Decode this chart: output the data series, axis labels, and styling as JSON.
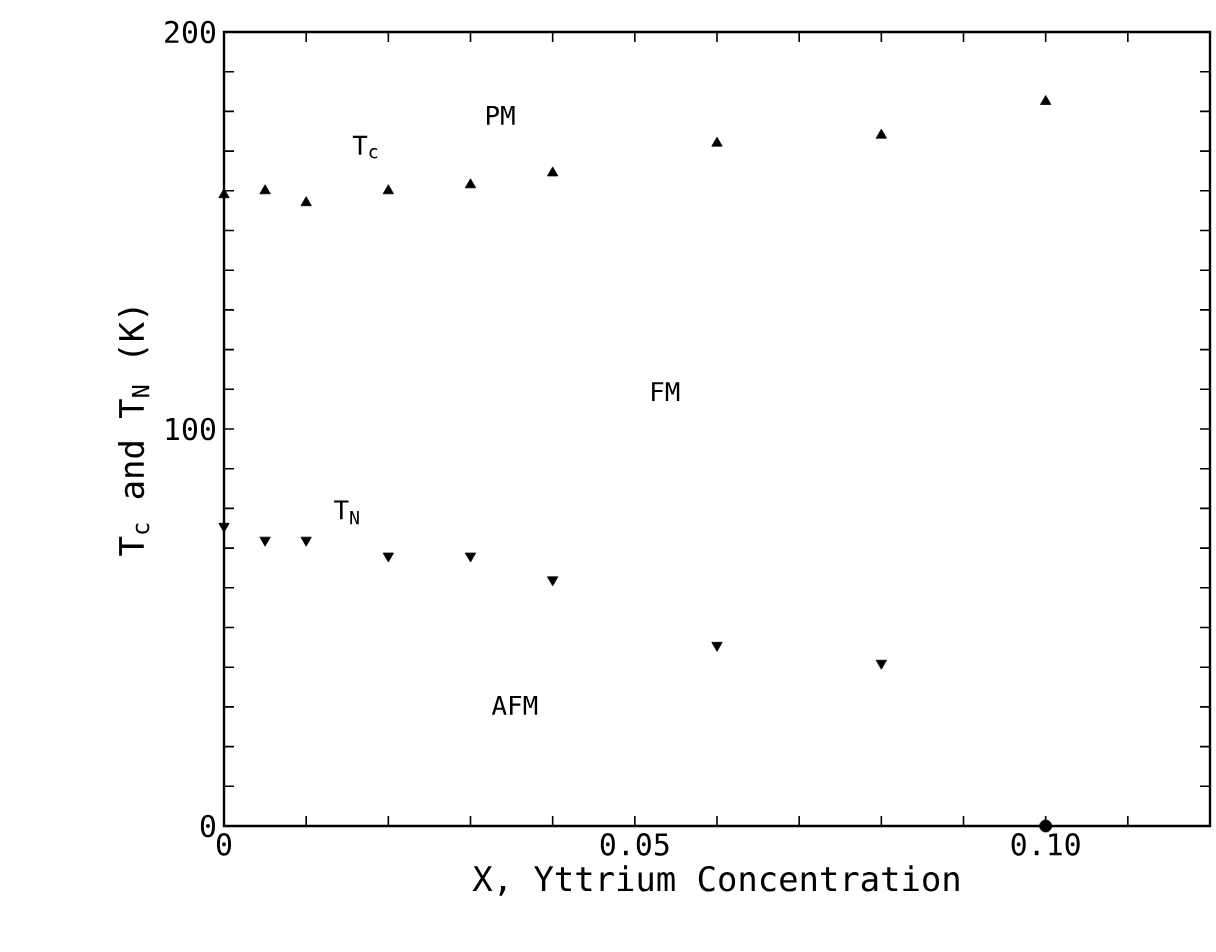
{
  "chart_data": {
    "type": "scatter",
    "xlabel": "X,  Yttrium Concentration",
    "ylabel": "T$_{c}$ and T$_{N}$ (K)",
    "xlim": [
      0,
      0.12
    ],
    "ylim": [
      0,
      200
    ],
    "xticks": [
      0,
      {
        "value": 0.01,
        "label": null
      },
      {
        "value": 0.02,
        "label": null
      },
      {
        "value": 0.03,
        "label": null
      },
      {
        "value": 0.04,
        "label": null
      },
      0.05,
      {
        "value": 0.06,
        "label": null
      },
      {
        "value": 0.07,
        "label": null
      },
      {
        "value": 0.08,
        "label": null
      },
      {
        "value": 0.09,
        "label": null
      },
      {
        "value": 0.1,
        "label": "0.10"
      },
      {
        "value": 0.11,
        "label": null
      }
    ],
    "yticks": [
      0,
      {
        "value": 10,
        "label": null
      },
      {
        "value": 20,
        "label": null
      },
      {
        "value": 30,
        "label": null
      },
      {
        "value": 40,
        "label": null
      },
      {
        "value": 50,
        "label": null
      },
      {
        "value": 60,
        "label": null
      },
      {
        "value": 70,
        "label": null
      },
      {
        "value": 80,
        "label": null
      },
      {
        "value": 90,
        "label": null
      },
      100,
      {
        "value": 110,
        "label": null
      },
      {
        "value": 120,
        "label": null
      },
      {
        "value": 130,
        "label": null
      },
      {
        "value": 140,
        "label": null
      },
      {
        "value": 150,
        "label": null
      },
      {
        "value": 160,
        "label": null
      },
      {
        "value": 170,
        "label": null
      },
      {
        "value": 180,
        "label": null
      },
      {
        "value": 190,
        "label": null
      },
      200
    ],
    "grid": false,
    "series": [
      {
        "color": "#000000",
        "marker": "triangle",
        "x": [
          0,
          0.005,
          0.01,
          0.02,
          0.03,
          0.04,
          0.06,
          0.08,
          0.1
        ],
        "values": [
          159,
          160,
          157,
          160,
          161.5,
          164.5,
          172,
          174,
          182.5
        ]
      },
      {
        "color": "#000000",
        "marker": "triangle-down",
        "x": [
          0,
          0.005,
          0.01,
          0.02,
          0.03,
          0.04,
          0.06,
          0.08
        ],
        "values": [
          75.5,
          72,
          72,
          68,
          68,
          62,
          45.5,
          41
        ]
      },
      {
        "color": "#000000",
        "marker": "circle",
        "x": [
          0.1
        ],
        "values": [
          0
        ]
      }
    ],
    "annotations": [
      "T$_{c}$",
      "PM",
      "FM",
      "T$_{N}$",
      "AFM"
    ]
  }
}
